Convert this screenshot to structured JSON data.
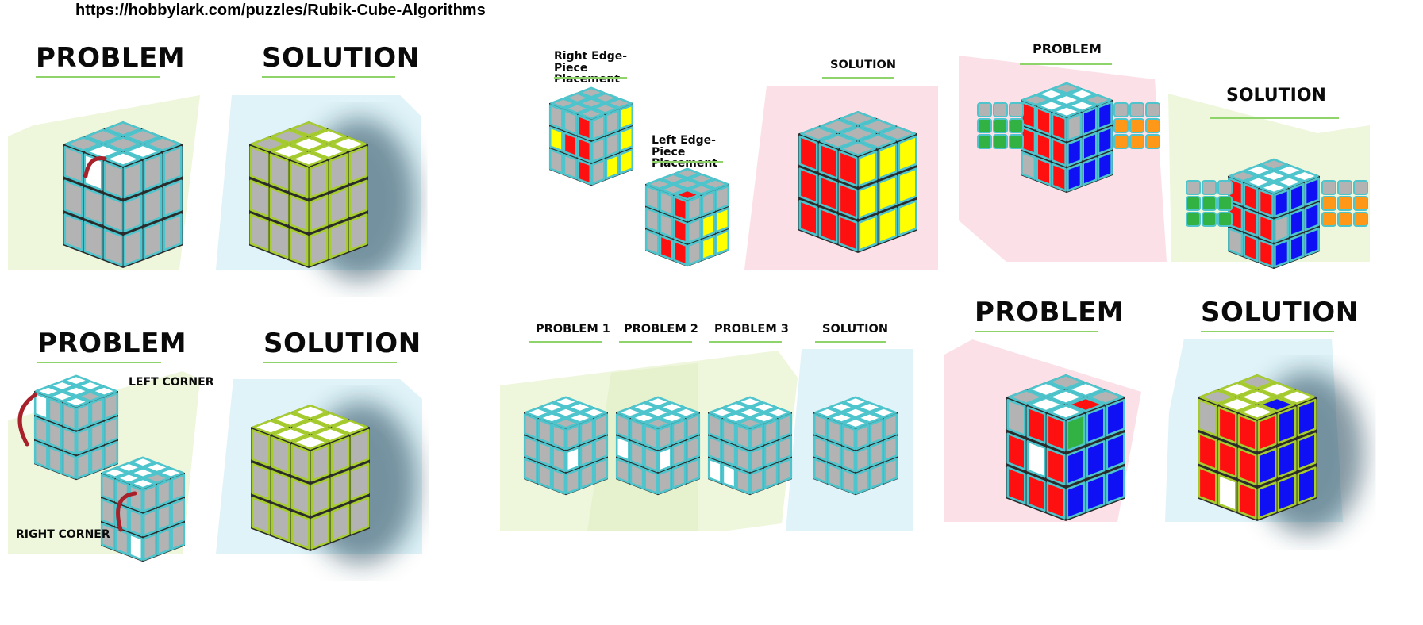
{
  "source_url": "https://hobbylark.com/puzzles/Rubik-Cube-Algorithms",
  "labels": {
    "problem": "PROBLEM",
    "solution": "SOLUTION",
    "left_corner": "LEFT CORNER",
    "right_corner": "RIGHT CORNER",
    "right_edge": "Right Edge-Piece Placement",
    "left_edge": "Left Edge-Piece Placement",
    "problem_1": "PROBLEM 1",
    "problem_2": "PROBLEM 2",
    "problem_3": "PROBLEM 3"
  },
  "colors": {
    "green_bg": "#eef6dc",
    "blue_bg": "#dff3f8",
    "pink_bg": "#fbe1e7",
    "sticker_gray": "#b3b3b3",
    "sticker_white": "#ffffff",
    "sticker_red": "#ff1010",
    "sticker_yellow": "#ffff00",
    "sticker_blue": "#1010f5",
    "sticker_green": "#32b242",
    "sticker_orange": "#ff9818",
    "outline_teal": "#4ec4cc",
    "outline_green": "#a6cc30",
    "underline_green": "#8fd46a",
    "arrow_red": "#a8202a"
  }
}
